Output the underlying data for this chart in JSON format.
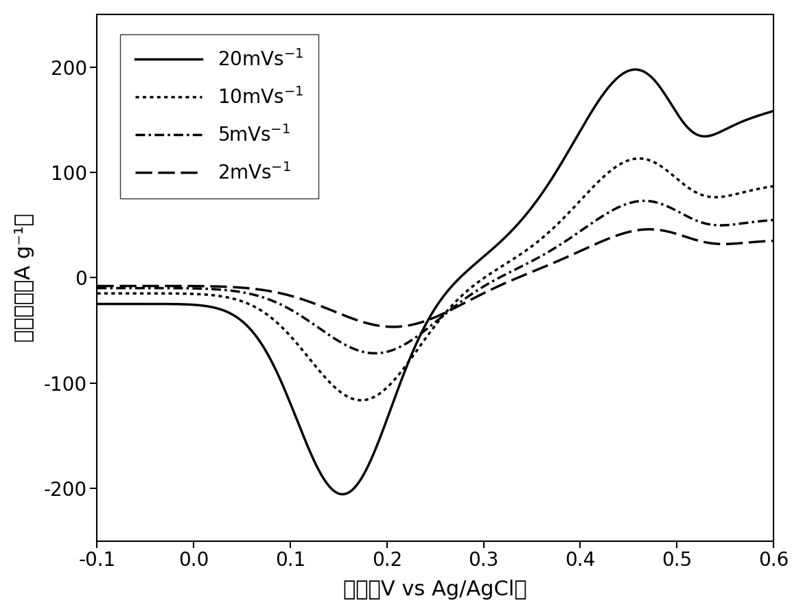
{
  "title": "",
  "xlabel": "电压（V vs Ag/AgCl）",
  "ylabel": "电流密度（A g⁻¹）",
  "xlim": [
    -0.1,
    0.6
  ],
  "ylim": [
    -250,
    250
  ],
  "xticks": [
    -0.1,
    0.0,
    0.1,
    0.2,
    0.3,
    0.4,
    0.5,
    0.6
  ],
  "yticks": [
    -200,
    -100,
    0,
    100,
    200
  ],
  "background_color": "#ffffff",
  "line_color": "#000000",
  "legend_labels": [
    "20mVs$^{-1}$",
    "10mVs$^{-1}$",
    "5mVs$^{-1}$",
    "2mVs$^{-1}$"
  ],
  "linewidth": 2.5,
  "font_size_ticks": 20,
  "font_size_labels": 22,
  "font_size_legend": 20
}
